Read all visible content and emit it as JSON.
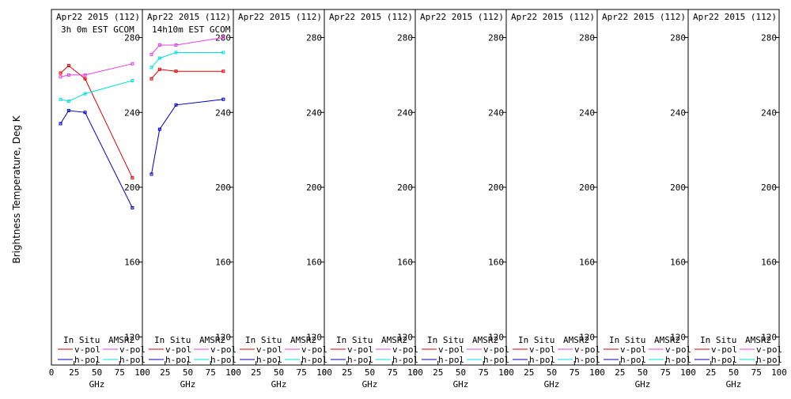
{
  "figure": {
    "ylabel": "Brightness Temperature, Deg K",
    "xlabel": "GHz",
    "y_ticks": [
      "280",
      "240",
      "200",
      "160",
      "120"
    ],
    "x_ticks": [
      "0",
      "25",
      "50",
      "75",
      "100"
    ],
    "legend": {
      "in_situ": "In Situ",
      "amsr2": "AMSR2",
      "vpol": "v-pol",
      "hpol": "h-pol"
    },
    "colors": {
      "insitu_v": "#e00000",
      "insitu_h": "#0000c0",
      "amsr2_v": "#e040e0",
      "amsr2_h": "#00e0e0"
    }
  },
  "panels": [
    {
      "title": "Apr22 2015 (112)",
      "subtitle": "3h 0m EST GCOM"
    },
    {
      "title": "Apr22 2015 (112)",
      "subtitle": "14h10m EST GCOM"
    },
    {
      "title": "Apr22 2015 (112)",
      "subtitle": ""
    },
    {
      "title": "Apr22 2015 (112)",
      "subtitle": ""
    },
    {
      "title": "Apr22 2015 (112)",
      "subtitle": ""
    },
    {
      "title": "Apr22 2015 (112)",
      "subtitle": ""
    },
    {
      "title": "Apr22 2015 (112)",
      "subtitle": ""
    },
    {
      "title": "Apr22 2015 (112)",
      "subtitle": ""
    }
  ],
  "chart_data": {
    "type": "line",
    "xlabel": "GHz",
    "ylabel": "Brightness Temperature, Deg K",
    "xlim": [
      0,
      100
    ],
    "ylim": [
      105,
      295
    ],
    "panels": [
      {
        "title": "Apr22 2015 (112)",
        "subtitle": "3h 0m EST GCOM",
        "series": [
          {
            "name": "In Situ v-pol",
            "x": [
              10,
              19,
              37,
              89
            ],
            "y": [
              261,
              265,
              258,
              205
            ]
          },
          {
            "name": "In Situ h-pol",
            "x": [
              10,
              19,
              37,
              89
            ],
            "y": [
              234,
              241,
              240,
              189
            ]
          },
          {
            "name": "AMSR2 v-pol",
            "x": [
              10,
              19,
              37,
              89
            ],
            "y": [
              259,
              260,
              260,
              266
            ]
          },
          {
            "name": "AMSR2 h-pol",
            "x": [
              10,
              19,
              37,
              89
            ],
            "y": [
              247,
              246,
              250,
              257
            ]
          }
        ]
      },
      {
        "title": "Apr22 2015 (112)",
        "subtitle": "14h10m EST GCOM",
        "series": [
          {
            "name": "In Situ v-pol",
            "x": [
              10,
              19,
              37,
              89
            ],
            "y": [
              258,
              263,
              262,
              262
            ]
          },
          {
            "name": "In Situ h-pol",
            "x": [
              10,
              19,
              37,
              89
            ],
            "y": [
              207,
              231,
              244,
              247
            ]
          },
          {
            "name": "AMSR2 v-pol",
            "x": [
              10,
              19,
              37,
              89
            ],
            "y": [
              271,
              276,
              276,
              280
            ]
          },
          {
            "name": "AMSR2 h-pol",
            "x": [
              10,
              19,
              37,
              89
            ],
            "y": [
              264,
              269,
              272,
              272
            ]
          }
        ]
      },
      {
        "title": "Apr22 2015 (112)",
        "subtitle": "",
        "series": []
      },
      {
        "title": "Apr22 2015 (112)",
        "subtitle": "",
        "series": []
      },
      {
        "title": "Apr22 2015 (112)",
        "subtitle": "",
        "series": []
      },
      {
        "title": "Apr22 2015 (112)",
        "subtitle": "",
        "series": []
      },
      {
        "title": "Apr22 2015 (112)",
        "subtitle": "",
        "series": []
      },
      {
        "title": "Apr22 2015 (112)",
        "subtitle": "",
        "series": []
      }
    ]
  }
}
